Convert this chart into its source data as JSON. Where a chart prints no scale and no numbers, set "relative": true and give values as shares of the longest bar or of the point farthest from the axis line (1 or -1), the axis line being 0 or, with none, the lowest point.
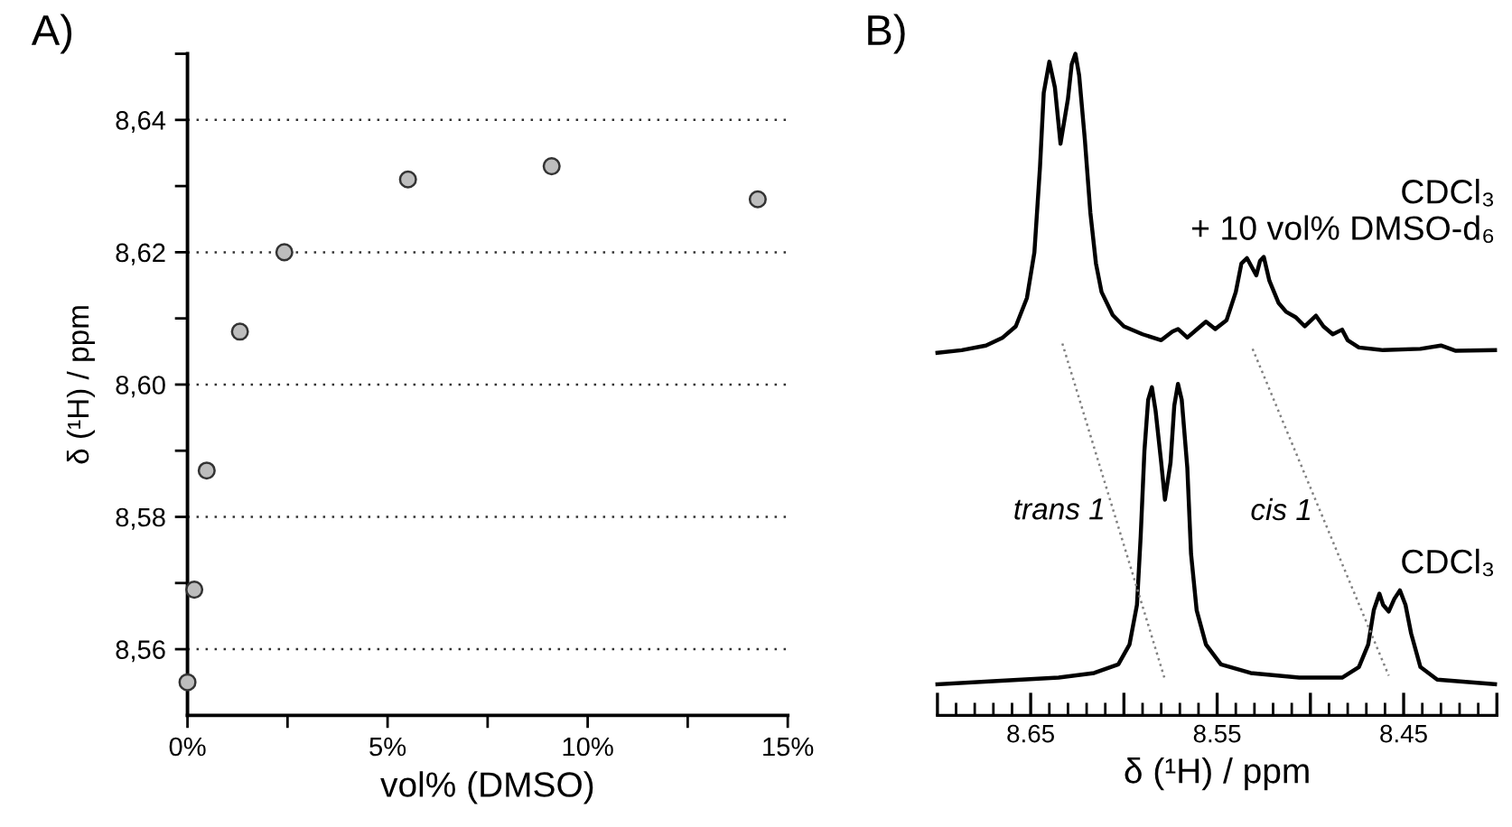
{
  "chart_data": [
    {
      "type": "scatter",
      "title": "A)",
      "xlabel": "vol% (DMSO)",
      "ylabel": "δ (¹H) / ppm",
      "series": [
        {
          "color": "#bdbdbd",
          "x": [
            0.0,
            0.17,
            0.48,
            1.31,
            2.42,
            5.51,
            9.1,
            14.25
          ],
          "values": [
            8.555,
            8.569,
            8.587,
            8.608,
            8.62,
            8.631,
            8.633,
            8.628
          ]
        }
      ],
      "marker": "circle",
      "grid": "y",
      "xlim": [
        0,
        15
      ],
      "xticks": [
        {
          "value": 0,
          "label": "0%"
        },
        {
          "value": 2.5,
          "label": null
        },
        {
          "value": 5,
          "label": "5%"
        },
        {
          "value": 7.5,
          "label": null
        },
        {
          "value": 10,
          "label": "10%"
        },
        {
          "value": 12.5,
          "label": null
        },
        {
          "value": 15,
          "label": "15%"
        }
      ],
      "ylim": [
        8.55,
        8.65
      ],
      "yticks": [
        {
          "value": 8.56,
          "label": "8,56"
        },
        {
          "value": 8.57,
          "label": null
        },
        {
          "value": 8.58,
          "label": "8,58"
        },
        {
          "value": 8.59,
          "label": null
        },
        {
          "value": 8.6,
          "label": "8,60"
        },
        {
          "value": 8.61,
          "label": null
        },
        {
          "value": 8.62,
          "label": "8,62"
        },
        {
          "value": 8.63,
          "label": null
        },
        {
          "value": 8.64,
          "label": "8,64"
        },
        {
          "value": 8.65,
          "label": null
        }
      ]
    },
    {
      "type": "line",
      "title": "B)",
      "xlabel": "δ (¹H) / ppm",
      "relative": true,
      "tick_labels": "x",
      "xlim": [
        8.7,
        8.4
      ],
      "xticks": [
        {
          "value": 8.7,
          "label": null
        },
        {
          "value": 8.65,
          "label": "8.65"
        },
        {
          "value": 8.6,
          "label": null
        },
        {
          "value": 8.55,
          "label": "8.55"
        },
        {
          "value": 8.5,
          "label": null
        },
        {
          "value": 8.45,
          "label": "8.45"
        },
        {
          "value": 8.4,
          "label": null
        }
      ],
      "annotations": [
        "trans 1",
        "cis 1"
      ],
      "series": [
        {
          "name": "CDCl₃\n+ 10 vol% DMSO-d₆",
          "color": "#000000",
          "x": [
            8.7,
            8.687,
            8.674,
            8.665,
            8.658,
            8.652,
            8.648,
            8.645,
            8.643,
            8.64,
            8.637,
            8.634,
            8.63,
            8.628,
            8.626,
            8.624,
            8.621,
            8.618,
            8.615,
            8.612,
            8.606,
            8.6,
            8.59,
            8.58,
            8.574,
            8.571,
            8.566,
            8.559,
            8.556,
            8.551,
            8.545,
            8.54,
            8.537,
            8.534,
            8.529,
            8.527,
            8.525,
            8.522,
            8.517,
            8.513,
            8.508,
            8.503,
            8.497,
            8.493,
            8.488,
            8.483,
            8.48,
            8.474,
            8.461,
            8.441,
            8.43,
            8.422,
            8.401
          ],
          "values": [
            0.548,
            0.552,
            0.559,
            0.571,
            0.588,
            0.631,
            0.7,
            0.829,
            0.941,
            0.988,
            0.949,
            0.864,
            0.932,
            0.984,
            1.0,
            0.967,
            0.872,
            0.76,
            0.683,
            0.64,
            0.605,
            0.588,
            0.576,
            0.567,
            0.58,
            0.584,
            0.571,
            0.588,
            0.595,
            0.584,
            0.597,
            0.64,
            0.683,
            0.691,
            0.665,
            0.687,
            0.693,
            0.657,
            0.623,
            0.61,
            0.602,
            0.588,
            0.604,
            0.588,
            0.576,
            0.583,
            0.567,
            0.556,
            0.552,
            0.554,
            0.559,
            0.551,
            0.552
          ]
        },
        {
          "name": "CDCl₃",
          "color": "#000000",
          "x": [
            8.7,
            8.668,
            8.635,
            8.616,
            8.603,
            8.597,
            8.593,
            8.591,
            8.589,
            8.587,
            8.585,
            8.583,
            8.58,
            8.578,
            8.575,
            8.573,
            8.571,
            8.569,
            8.566,
            8.564,
            8.561,
            8.556,
            8.548,
            8.532,
            8.506,
            8.483,
            8.474,
            8.469,
            8.466,
            8.463,
            8.461,
            8.458,
            8.455,
            8.452,
            8.449,
            8.446,
            8.441,
            8.432,
            8.401
          ],
          "values": [
            0.047,
            0.052,
            0.057,
            0.064,
            0.077,
            0.107,
            0.167,
            0.271,
            0.4,
            0.477,
            0.496,
            0.46,
            0.382,
            0.326,
            0.382,
            0.468,
            0.501,
            0.477,
            0.374,
            0.244,
            0.159,
            0.107,
            0.077,
            0.064,
            0.057,
            0.057,
            0.073,
            0.107,
            0.159,
            0.184,
            0.167,
            0.157,
            0.176,
            0.189,
            0.167,
            0.124,
            0.073,
            0.054,
            0.047
          ]
        },
        {
          "color": "#808080",
          "line_style": "dotted",
          "x": [
            8.633,
            8.578
          ],
          "values": [
            0.562,
            0.054
          ]
        },
        {
          "color": "#808080",
          "line_style": "dotted",
          "x": [
            8.531,
            8.458
          ],
          "values": [
            0.554,
            0.06
          ]
        }
      ]
    }
  ]
}
